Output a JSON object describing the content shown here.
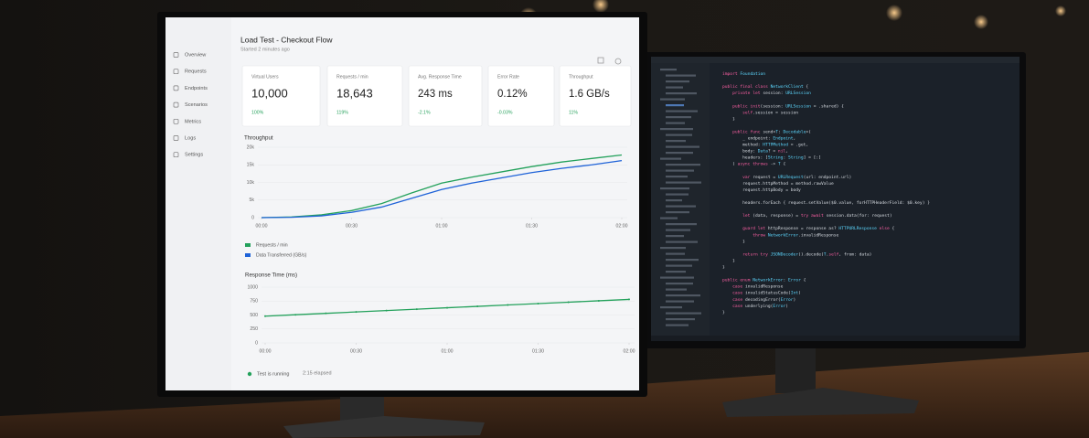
{
  "sidebar": [
    "Overview",
    "Requests",
    "Endpoints",
    "Scenarios",
    "Metrics",
    "Logs",
    "Settings"
  ],
  "header": {
    "title": "Load Test - Checkout Flow",
    "subtitle": "Started 2 minutes ago"
  },
  "cards": [
    {
      "label": "Virtual Users",
      "value": "10,000",
      "change": "100%"
    },
    {
      "label": "Requests / min",
      "value": "18,643",
      "change": "119%"
    },
    {
      "label": "Avg. Response Time",
      "value": "243 ms",
      "change": "-2.1%"
    },
    {
      "label": "Error Rate",
      "value": "0.12%",
      "change": "-0.03%"
    },
    {
      "label": "Throughput",
      "value": "1.6 GB/s",
      "change": "11%"
    }
  ],
  "charts": [
    {
      "type": "line",
      "title": "Throughput",
      "x": [
        0,
        10,
        20,
        30,
        40,
        50,
        60,
        70,
        80,
        90,
        100,
        110,
        120
      ],
      "xlim": [
        0,
        120
      ],
      "xticks": [
        {
          "value": 0,
          "label": "00:00"
        },
        {
          "value": 30,
          "label": "00:30"
        },
        {
          "value": 60,
          "label": "01:00"
        },
        {
          "value": 90,
          "label": "01:30"
        },
        {
          "value": 120,
          "label": "02:00"
        }
      ],
      "ylim": [
        0,
        20000
      ],
      "yticks": [
        0,
        {
          "value": 5000,
          "label": "5k"
        },
        {
          "value": 10000,
          "label": "10k"
        },
        {
          "value": 15000,
          "label": "15k"
        },
        {
          "value": 20000,
          "label": "20k"
        }
      ],
      "grid": true,
      "markers": false,
      "series": [
        {
          "name": "Requests / min",
          "color": "#23a15b",
          "values": [
            0,
            200,
            800,
            2000,
            4000,
            7000,
            9800,
            11500,
            13000,
            14500,
            15800,
            16800,
            17800
          ]
        },
        {
          "name": "Data Transferred (GB/s)",
          "color": "#1f63d8",
          "values": [
            0,
            100,
            500,
            1500,
            3000,
            5500,
            8000,
            9800,
            11300,
            12800,
            14000,
            15000,
            16200
          ]
        }
      ]
    },
    {
      "type": "line",
      "title": "Response Time (ms)",
      "x": [
        0,
        10,
        20,
        30,
        40,
        50,
        60,
        70,
        80,
        90,
        100,
        110,
        120
      ],
      "xlim": [
        0,
        120
      ],
      "xticks": [
        {
          "value": 0,
          "label": "00:00"
        },
        {
          "value": 30,
          "label": "00:30"
        },
        {
          "value": 60,
          "label": "01:00"
        },
        {
          "value": 90,
          "label": "01:30"
        },
        {
          "value": 120,
          "label": "02:00"
        }
      ],
      "ylim": [
        0,
        1000
      ],
      "yticks": [
        0,
        250,
        500,
        750,
        1000
      ],
      "grid": true,
      "markers": true,
      "series": [
        {
          "color": "#23a15b",
          "values": [
            480,
            505,
            530,
            555,
            580,
            605,
            630,
            655,
            680,
            705,
            730,
            755,
            780
          ]
        }
      ]
    }
  ],
  "status": {
    "text": "Test is running",
    "elapsed": "2:15 elapsed"
  },
  "editor": {
    "lines": [
      "import Foundation",
      "",
      "public final class NetworkClient {",
      "    private let session: URLSession",
      "",
      "    public init(session: URLSession = .shared) {",
      "        self.session = session",
      "    }",
      "",
      "    public func send<T: Decodable>(",
      "        _ endpoint: Endpoint,",
      "        method: HTTPMethod = .get,",
      "        body: Data? = nil,",
      "        headers: [String: String] = [:]",
      "    ) async throws -> T {",
      "",
      "        var request = URLRequest(url: endpoint.url)",
      "        request.httpMethod = method.rawValue",
      "        request.httpBody = body",
      "",
      "        headers.forEach { request.setValue($0.value, forHTTPHeaderField: $0.key) }",
      "",
      "        let (data, response) = try await session.data(for: request)",
      "",
      "        guard let httpResponse = response as? HTTPURLResponse else {",
      "            throw NetworkError.invalidResponse",
      "        }",
      "",
      "        return try JSONDecoder().decode(T.self, from: data)",
      "    }",
      "}",
      "",
      "public enum NetworkError: Error {",
      "    case invalidResponse",
      "    case invalidStatusCode(Int)",
      "    case decodingError(Error)",
      "    case underlying(Error)",
      "}"
    ]
  }
}
